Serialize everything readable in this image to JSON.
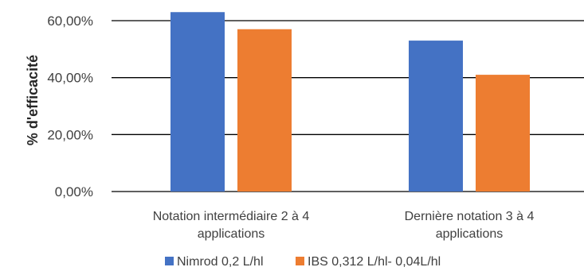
{
  "chart_data": {
    "type": "bar",
    "title": "",
    "xlabel": "",
    "ylabel": "% d'efficacité",
    "categories": [
      [
        "Notation intermédiaire 2 à 4",
        "applications"
      ],
      [
        "Dernière notation 3 à 4",
        "applications"
      ]
    ],
    "series": [
      {
        "name": "Nimrod 0,2 L/hl",
        "color": "#4472C4",
        "values": [
          63,
          53
        ]
      },
      {
        "name": "IBS 0,312 L/hl- 0,04L/hl",
        "color": "#ED7D31",
        "values": [
          57,
          41
        ]
      }
    ],
    "ylim": [
      0,
      60
    ],
    "yticks": [
      {
        "value": 0,
        "label": "0,00%"
      },
      {
        "value": 20,
        "label": "20,00%"
      },
      {
        "value": 40,
        "label": "40,00%"
      },
      {
        "value": 60,
        "label": "60,00%"
      }
    ],
    "grid": true,
    "legend_position": "bottom"
  }
}
